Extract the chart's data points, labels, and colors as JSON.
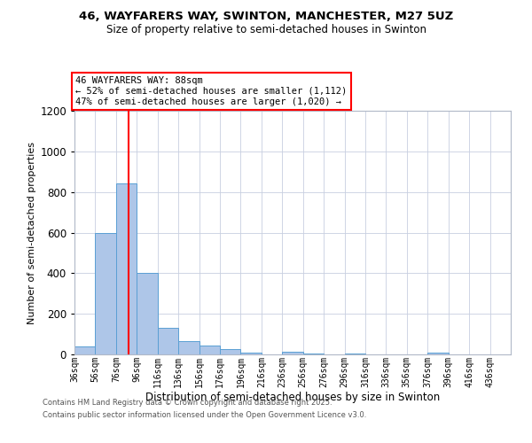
{
  "title1": "46, WAYFARERS WAY, SWINTON, MANCHESTER, M27 5UZ",
  "title2": "Size of property relative to semi-detached houses in Swinton",
  "xlabel": "Distribution of semi-detached houses by size in Swinton",
  "ylabel": "Number of semi-detached properties",
  "bar_color": "#aec6e8",
  "bar_edge_color": "#5a9fd4",
  "annotation_line_color": "red",
  "annotation_property": "46 WAYFARERS WAY: 88sqm",
  "annotation_smaller": "← 52% of semi-detached houses are smaller (1,112)",
  "annotation_larger": "47% of semi-detached houses are larger (1,020) →",
  "property_size": 88,
  "bins": [
    36,
    56,
    76,
    96,
    116,
    136,
    156,
    176,
    196,
    216,
    236,
    256,
    276,
    296,
    316,
    336,
    356,
    376,
    396,
    416,
    436
  ],
  "values": [
    40,
    600,
    840,
    400,
    130,
    65,
    45,
    25,
    10,
    0,
    12,
    5,
    0,
    3,
    0,
    0,
    0,
    8,
    0,
    0
  ],
  "ylim": [
    0,
    1200
  ],
  "yticks": [
    0,
    200,
    400,
    600,
    800,
    1000,
    1200
  ],
  "footer1": "Contains HM Land Registry data © Crown copyright and database right 2025.",
  "footer2": "Contains public sector information licensed under the Open Government Licence v3.0.",
  "background_color": "#ffffff",
  "grid_color": "#c8cfe0"
}
